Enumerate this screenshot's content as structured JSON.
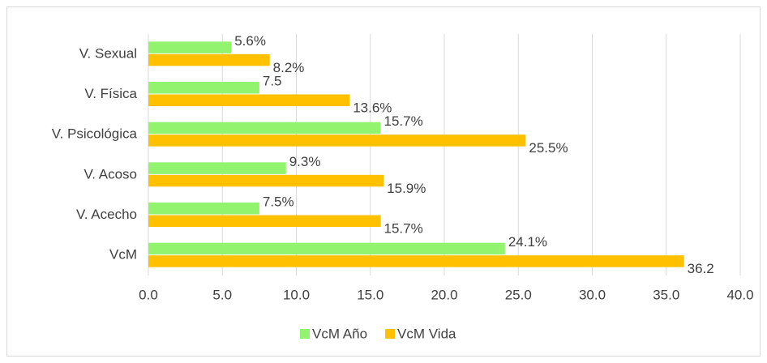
{
  "chart_data": {
    "type": "bar",
    "orientation": "horizontal",
    "categories": [
      "V. Sexual",
      "V. Física",
      "V. Psicológica",
      "V. Acoso",
      "V. Acecho",
      "VcM"
    ],
    "series": [
      {
        "name": "VcM Año",
        "color": "#92f36f",
        "values": [
          5.6,
          7.5,
          15.7,
          9.3,
          7.5,
          24.1
        ],
        "value_labels": [
          "5.6%",
          "7.5",
          "15.7%",
          "9.3%",
          "7.5%",
          "24.1%"
        ]
      },
      {
        "name": "VcM Vida",
        "color": "#ffc000",
        "values": [
          8.2,
          13.6,
          25.5,
          15.9,
          15.7,
          36.2
        ],
        "value_labels": [
          "8.2%",
          "13.6%",
          "25.5%",
          "15.9%",
          "15.7%",
          "36.2"
        ]
      }
    ],
    "xlim": [
      0,
      40
    ],
    "xticks": [
      {
        "value": 0,
        "label": "0.0"
      },
      {
        "value": 5,
        "label": "5.0"
      },
      {
        "value": 10,
        "label": "10.0"
      },
      {
        "value": 15,
        "label": "15.0"
      },
      {
        "value": 20,
        "label": "20.0"
      },
      {
        "value": 25,
        "label": "25.0"
      },
      {
        "value": 30,
        "label": "30.0"
      },
      {
        "value": 35,
        "label": "35.0"
      },
      {
        "value": 40,
        "label": "40.0"
      }
    ],
    "grid": true,
    "legend": "bottom"
  }
}
